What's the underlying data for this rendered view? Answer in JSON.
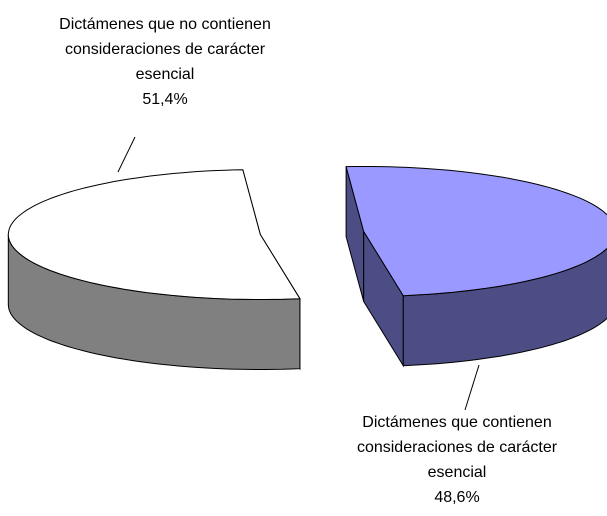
{
  "chart_data": {
    "type": "pie",
    "categories": [
      "Dictámenes que contienen consideraciones de carácter esencial",
      "Dictámenes que no contienen consideraciones de carácter esencial"
    ],
    "values": [
      48.6,
      51.4
    ],
    "value_labels": [
      "48,6%",
      "51,4%"
    ],
    "colors": [
      "#9999ff",
      "#ffffff"
    ],
    "side_colors": [
      "#4d4d85",
      "#808080"
    ],
    "exploded": true,
    "three_d": true
  }
}
